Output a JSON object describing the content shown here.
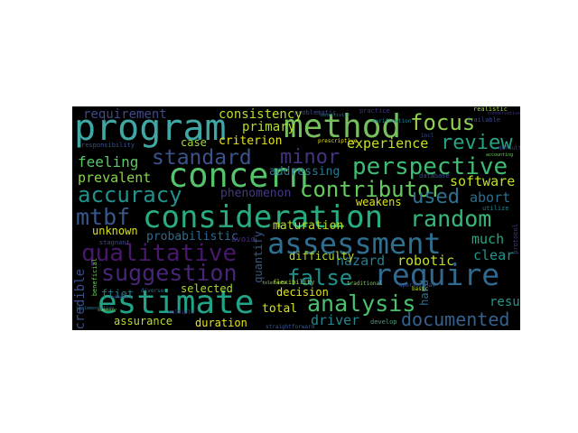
{
  "words": [
    {
      "text": "program",
      "color": "#3fa7a4"
    },
    {
      "text": "method",
      "color": "#77c05e"
    },
    {
      "text": "focus",
      "color": "#8fd14f"
    },
    {
      "text": "review",
      "color": "#26a586"
    },
    {
      "text": "concern",
      "color": "#55c26c"
    },
    {
      "text": "perspective",
      "color": "#3fbc73"
    },
    {
      "text": "standard",
      "color": "#3b528b"
    },
    {
      "text": "minor",
      "color": "#46337e"
    },
    {
      "text": "consideration",
      "color": "#27ad81"
    },
    {
      "text": "assessment",
      "color": "#2e6e8e"
    },
    {
      "text": "random",
      "color": "#35b779"
    },
    {
      "text": "accuracy",
      "color": "#21918c"
    },
    {
      "text": "contributor",
      "color": "#65cb5e"
    },
    {
      "text": "used",
      "color": "#2c728e"
    },
    {
      "text": "mtbf",
      "color": "#38588c"
    },
    {
      "text": "qualitative",
      "color": "#48186a"
    },
    {
      "text": "suggestion",
      "color": "#482576"
    },
    {
      "text": "require",
      "color": "#31688e"
    },
    {
      "text": "false",
      "color": "#21908d"
    },
    {
      "text": "estimate",
      "color": "#20a386"
    },
    {
      "text": "analysis",
      "color": "#4ac16d"
    },
    {
      "text": "documented",
      "color": "#34618d"
    },
    {
      "text": "consistency",
      "color": "#b5de2b"
    },
    {
      "text": "requirement",
      "color": "#3e4a89"
    },
    {
      "text": "experience",
      "color": "#c8e020"
    },
    {
      "text": "criterion",
      "color": "#e5e419"
    },
    {
      "text": "primary",
      "color": "#b2dd2d"
    },
    {
      "text": "case",
      "color": "#a2da37"
    },
    {
      "text": "feeling",
      "color": "#5cc863"
    },
    {
      "text": "prevalent",
      "color": "#86d549"
    },
    {
      "text": "addressing",
      "color": "#2a778e"
    },
    {
      "text": "software",
      "color": "#c2df23"
    },
    {
      "text": "abort",
      "color": "#2d708e"
    },
    {
      "text": "phenomenon",
      "color": "#443a83"
    },
    {
      "text": "weakens",
      "color": "#dde318"
    },
    {
      "text": "unknown",
      "color": "#d8e219"
    },
    {
      "text": "probabilistic",
      "color": "#306a8e"
    },
    {
      "text": "maturation",
      "color": "#bade28"
    },
    {
      "text": "hazard",
      "color": "#287c8e"
    },
    {
      "text": "robotic",
      "color": "#c0df25"
    },
    {
      "text": "much",
      "color": "#22a884"
    },
    {
      "text": "clear",
      "color": "#1f958b"
    },
    {
      "text": "difficulty",
      "color": "#b8de29"
    },
    {
      "text": "quantify",
      "color": "#375a8c"
    },
    {
      "text": "credible",
      "color": "#3d4e8a"
    },
    {
      "text": "ftiet",
      "color": "#2a768e"
    },
    {
      "text": "selected",
      "color": "#a8db34"
    },
    {
      "text": "decision",
      "color": "#e2e418"
    },
    {
      "text": "result",
      "color": "#1f9a8a"
    },
    {
      "text": "hard",
      "color": "#2c718e"
    },
    {
      "text": "total",
      "color": "#d5e21a"
    },
    {
      "text": "driver",
      "color": "#24868e"
    },
    {
      "text": "assurance",
      "color": "#b4de2c"
    },
    {
      "text": "duration",
      "color": "#e7e419"
    },
    {
      "text": "avoid",
      "color": "#472c7a"
    },
    {
      "text": "problematic",
      "color": "#3e4989"
    },
    {
      "text": "responsibility",
      "color": "#3a538b"
    },
    {
      "text": "realistic",
      "color": "#a0da39"
    },
    {
      "text": "flexibility",
      "color": "#b0dd2f"
    },
    {
      "text": "develop",
      "color": "#4e9a7a"
    },
    {
      "text": "database",
      "color": "#3b528b"
    },
    {
      "text": "traditional",
      "color": "#7ad151"
    },
    {
      "text": "practice",
      "color": "#46307e"
    },
    {
      "text": "available",
      "color": "#3e4989"
    },
    {
      "text": "protocol",
      "color": "#433d84"
    },
    {
      "text": "utilize",
      "color": "#277f8e"
    },
    {
      "text": "stagnant",
      "color": "#3e4c8a"
    },
    {
      "text": "diverse",
      "color": "#2f6b8e"
    },
    {
      "text": "beneficial",
      "color": "#6ece58"
    },
    {
      "text": "straightforward",
      "color": "#375b8d"
    },
    {
      "text": "tolerance",
      "color": "#9dd93b"
    },
    {
      "text": "operational",
      "color": "#3b518b"
    },
    {
      "text": "multiple",
      "color": "#453781"
    },
    {
      "text": "verification",
      "color": "#24868e"
    },
    {
      "text": "implementation",
      "color": "#2d718e"
    },
    {
      "text": "prescriptive",
      "color": "#e5e419"
    },
    {
      "text": "incl",
      "color": "#3b518b"
    },
    {
      "text": "default",
      "color": "#3f4788"
    },
    {
      "text": "accounting",
      "color": "#6ccd5a"
    },
    {
      "text": "summary",
      "color": "#73d056"
    },
    {
      "text": "conservative",
      "color": "#46307e"
    },
    {
      "text": "sensitivity",
      "color": "#2a768e"
    },
    {
      "text": "effect",
      "color": "#3e4c8a"
    },
    {
      "text": "basic",
      "color": "#bade28"
    }
  ]
}
